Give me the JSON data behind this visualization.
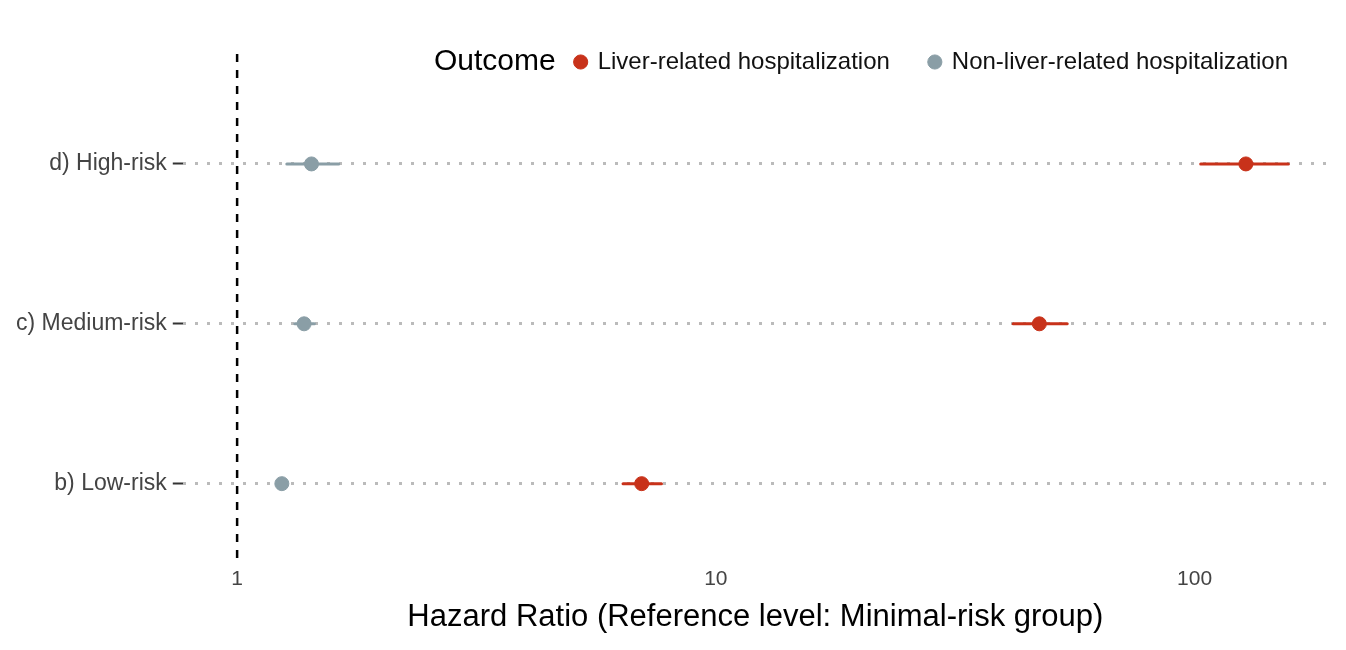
{
  "chart_data": {
    "type": "scatter",
    "xlabel": "Hazard Ratio (Reference level: Minimal-risk group)",
    "legend_title": "Outcome",
    "legend": "top",
    "grid": "y",
    "orientation": "horizontal",
    "marker": "circle",
    "log": "x",
    "categories": [
      "d) High-risk",
      "c) Medium-risk",
      "b) Low-risk"
    ],
    "xlim": [
      0.77,
      190
    ],
    "xticks": [
      1,
      10,
      100
    ],
    "series": [
      {
        "name": "Liver-related hospitalization",
        "color": "#c8321a",
        "values": [
          128,
          47.4,
          7.0
        ],
        "errors": [
          [
            103,
            157
          ],
          [
            41.8,
            54.2
          ],
          [
            6.4,
            7.7
          ]
        ]
      },
      {
        "name": "Non-liver-related hospitalization",
        "color": "#8a9ea6",
        "values": [
          1.43,
          1.38,
          1.24
        ],
        "errors": [
          [
            1.27,
            1.63
          ],
          [
            1.32,
            1.45
          ],
          null
        ]
      }
    ],
    "ref_lines": [
      {
        "axis": "x",
        "value": 1,
        "color": "#000000",
        "line_style": "dashed"
      }
    ]
  }
}
